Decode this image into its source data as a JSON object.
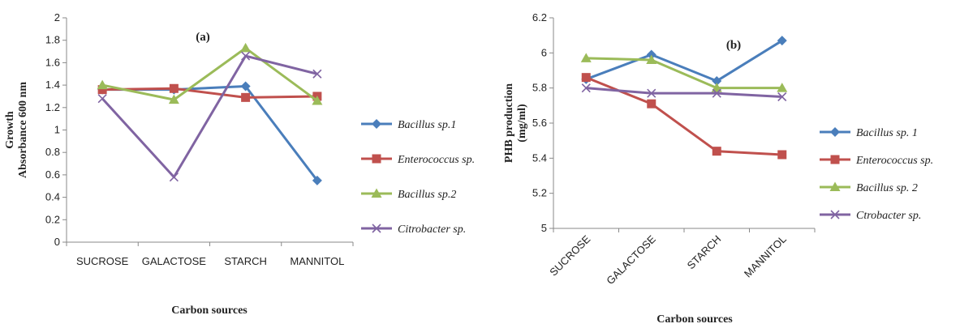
{
  "chart_data": [
    {
      "type": "line",
      "panel_label": "(a)",
      "categories": [
        "SUCROSE",
        "GALACTOSE",
        "STARCH",
        "MANNITOL"
      ],
      "xlabel": "Carbon sources",
      "ylabel_line1": "Growth",
      "ylabel_line2": "Absorbance 600 nm",
      "ylim": [
        0,
        2
      ],
      "yticks": [
        "0",
        "0.2",
        "0.4",
        "0.6",
        "0.8",
        "1",
        "1.2",
        "1.4",
        "1.6",
        "1.8",
        "2"
      ],
      "grid": false,
      "legend_position": "right",
      "series": [
        {
          "name": "Bacillus sp.1",
          "color": "#4a7ebb",
          "marker": "diamond",
          "values": [
            1.36,
            1.36,
            1.39,
            0.55
          ]
        },
        {
          "name": "Enterococcus sp.",
          "color": "#c0504d",
          "marker": "square",
          "values": [
            1.36,
            1.37,
            1.29,
            1.3
          ]
        },
        {
          "name": "Bacillus sp.2",
          "color": "#9bbb59",
          "marker": "triangle",
          "values": [
            1.4,
            1.27,
            1.73,
            1.26
          ]
        },
        {
          "name": "Citrobacter sp.",
          "color": "#8064a2",
          "marker": "x",
          "values": [
            1.28,
            0.58,
            1.66,
            1.5
          ]
        }
      ]
    },
    {
      "type": "line",
      "panel_label": "(b)",
      "categories": [
        "SUCROSE",
        "GALACTOSE",
        "STARCH",
        "MANNITOL"
      ],
      "xlabel": "Carbon sources",
      "ylabel_line1": "PHB production",
      "ylabel_line2": "(mg/ml)",
      "ylim": [
        5,
        6.2
      ],
      "yticks": [
        "5",
        "5.2",
        "5.4",
        "5.6",
        "5.8",
        "6",
        "6.2"
      ],
      "grid": false,
      "legend_position": "right",
      "series": [
        {
          "name": "Bacillus sp. 1",
          "color": "#4a7ebb",
          "marker": "diamond",
          "values": [
            5.85,
            5.99,
            5.84,
            6.07
          ]
        },
        {
          "name": "Enterococcus sp.",
          "color": "#c0504d",
          "marker": "square",
          "values": [
            5.86,
            5.71,
            5.44,
            5.42
          ]
        },
        {
          "name": "Bacillus sp. 2",
          "color": "#9bbb59",
          "marker": "triangle",
          "values": [
            5.97,
            5.96,
            5.8,
            5.8
          ]
        },
        {
          "name": "Ctrobacter sp.",
          "color": "#8064a2",
          "marker": "x",
          "values": [
            5.8,
            5.77,
            5.77,
            5.75
          ]
        }
      ]
    }
  ]
}
